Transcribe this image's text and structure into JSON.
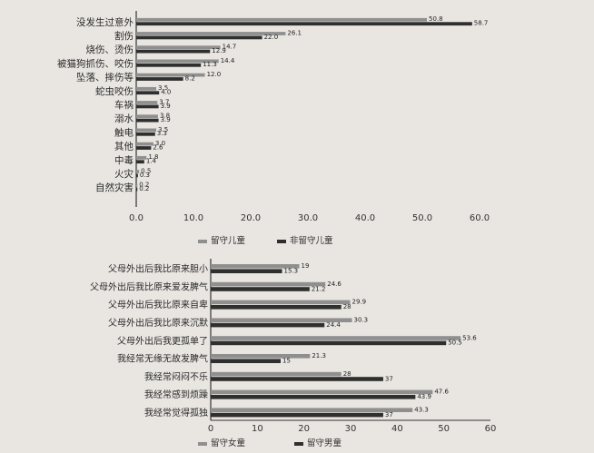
{
  "chart_data": [
    {
      "type": "bar",
      "orientation": "horizontal",
      "categories": [
        "没发生过意外",
        "割伤",
        "烧伤、烫伤",
        "被猫狗抓伤、咬伤",
        "坠落、摔伤等",
        "蛇虫咬伤",
        "车祸",
        "溺水",
        "触电",
        "其他",
        "中毒",
        "火灾",
        "自然灾害"
      ],
      "series": [
        {
          "name": "留守儿童",
          "color": "#8f8f8f",
          "values": [
            50.8,
            26.1,
            14.7,
            14.4,
            12.0,
            3.5,
            3.7,
            3.8,
            3.5,
            3.0,
            1.8,
            0.5,
            0.2
          ]
        },
        {
          "name": "非留守儿童",
          "color": "#2f2f2f",
          "values": [
            58.7,
            22.0,
            12.9,
            11.3,
            8.2,
            4.0,
            3.9,
            3.9,
            3.3,
            2.6,
            1.4,
            0.3,
            0.2
          ]
        }
      ],
      "data_labels": [
        [
          "50.8",
          "26.1",
          "14.7",
          "14.4",
          "12.0",
          "3.5",
          "3.7",
          "3.8",
          "3.5",
          "3.0",
          "1.8",
          "0.5",
          "0.2"
        ],
        [
          "58.7",
          "22.0",
          "12.9",
          "11.3",
          "8.2",
          "4.0",
          "3.9",
          "3.9",
          "3.3",
          "2.6",
          "1.4",
          "0.3",
          "0.2"
        ]
      ],
      "xticks": [
        "0.0",
        "10.0",
        "20.0",
        "30.0",
        "40.0",
        "50.0",
        "60.0"
      ],
      "xlim": [
        0,
        60
      ],
      "legend_position": "bottom",
      "grid": false
    },
    {
      "type": "bar",
      "orientation": "horizontal",
      "categories": [
        "父母外出后我比原来胆小",
        "父母外出后我比原来爱发脾气",
        "父母外出后我比原来自卑",
        "父母外出后我比原来沉默",
        "父母外出后我更孤单了",
        "我经常无缘无故发脾气",
        "我经常闷闷不乐",
        "我经常感到烦躁",
        "我经常觉得孤独"
      ],
      "series": [
        {
          "name": "留守女童",
          "color": "#8f8f8f",
          "values": [
            19,
            24.6,
            29.9,
            30.3,
            53.6,
            21.3,
            28,
            47.6,
            43.3
          ]
        },
        {
          "name": "留守男童",
          "color": "#2f2f2f",
          "values": [
            15.3,
            21.2,
            28,
            24.4,
            50.5,
            15,
            37,
            43.9,
            37
          ]
        }
      ],
      "data_labels": [
        [
          "19",
          "24.6",
          "29.9",
          "30.3",
          "53.6",
          "21.3",
          "28",
          "47.6",
          "43.3"
        ],
        [
          "15.3",
          "21.2",
          "28",
          "24.4",
          "50.5",
          "15",
          "37",
          "43.9",
          "37"
        ]
      ],
      "xticks": [
        "0",
        "10",
        "20",
        "30",
        "40",
        "50",
        "60"
      ],
      "xlim": [
        0,
        60
      ],
      "legend_position": "bottom",
      "grid": false
    }
  ]
}
